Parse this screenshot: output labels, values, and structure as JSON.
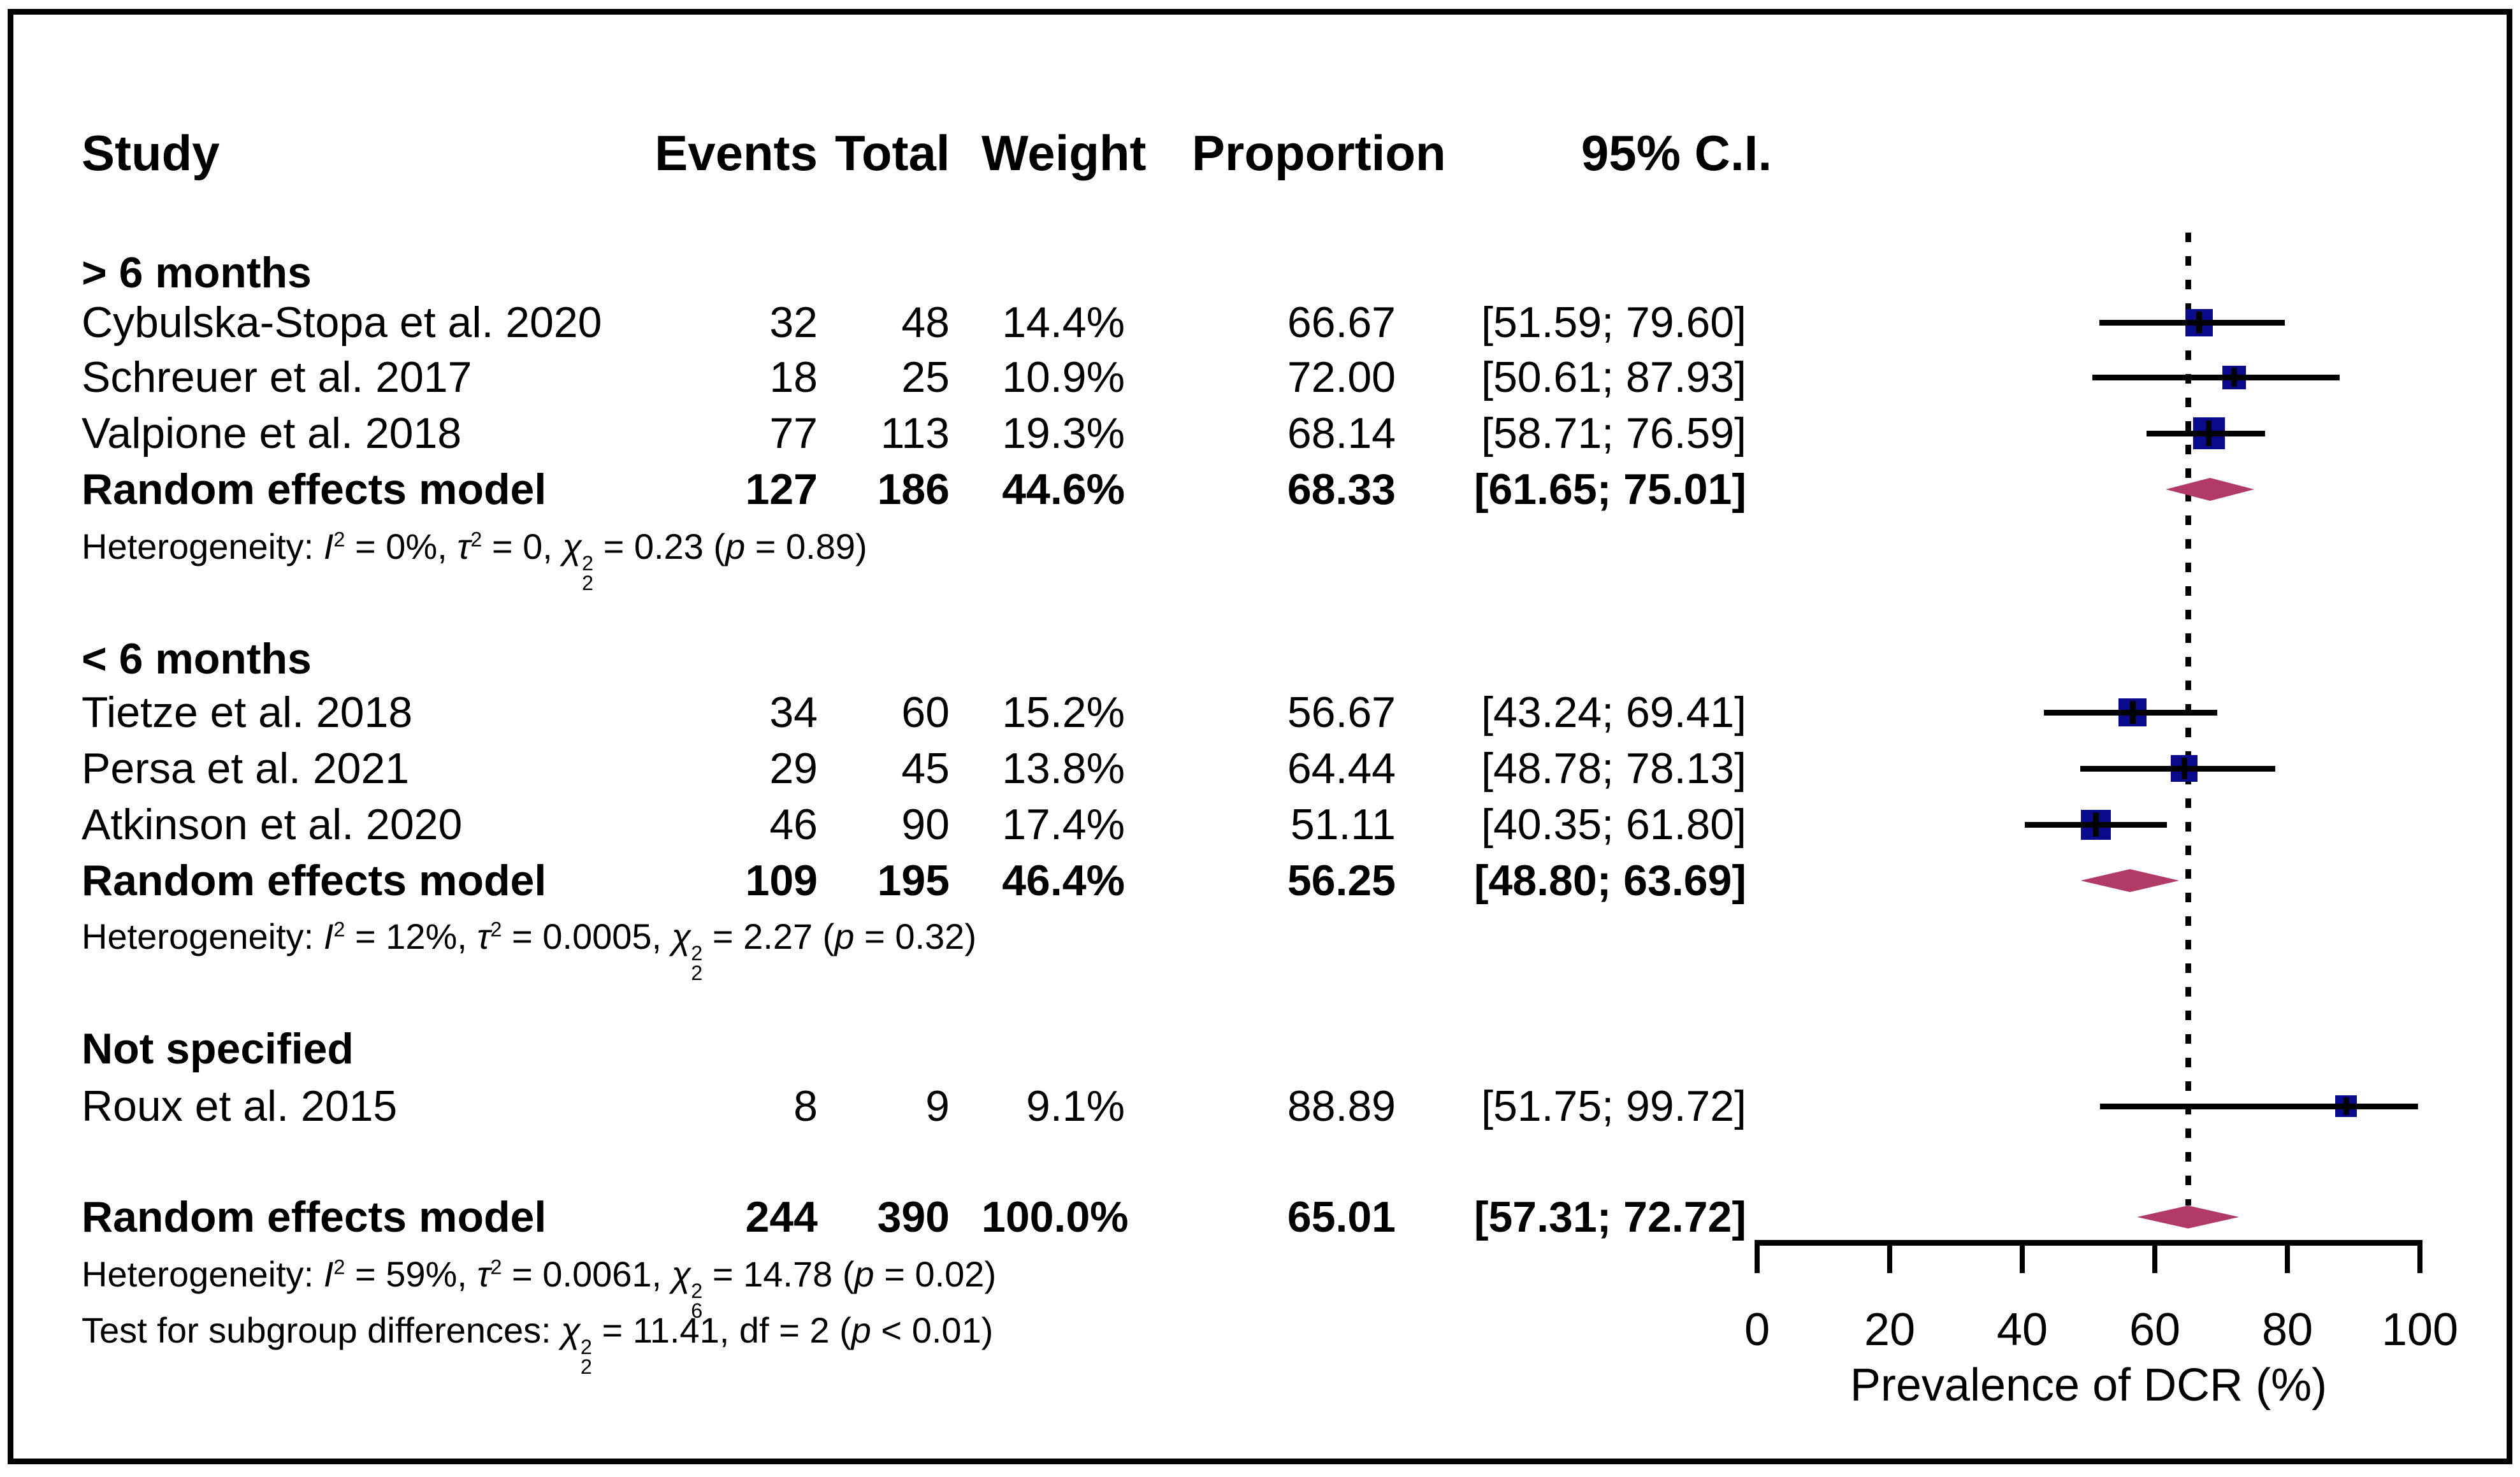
{
  "table": {
    "header": {
      "study": "Study",
      "events": "Events",
      "total": "Total",
      "weight": "Weight",
      "proportion": "Proportion",
      "ci": "95% C.I."
    },
    "groups": [
      {
        "label": "> 6 months",
        "studies": [
          {
            "name": "Cybulska-Stopa et al. 2020",
            "events": "32",
            "total": "48",
            "weight": "14.4%",
            "proportion": "66.67",
            "ci": "[51.59; 79.60]"
          },
          {
            "name": "Schreuer et al. 2017",
            "events": "18",
            "total": "25",
            "weight": "10.9%",
            "proportion": "72.00",
            "ci": "[50.61; 87.93]"
          },
          {
            "name": "Valpione et al. 2018",
            "events": "77",
            "total": "113",
            "weight": "19.3%",
            "proportion": "68.14",
            "ci": "[58.71; 76.59]"
          }
        ],
        "pooled": {
          "name": "Random effects model",
          "events": "127",
          "total": "186",
          "weight": "44.6%",
          "proportion": "68.33",
          "ci": "[61.65; 75.01]"
        },
        "heterogeneity": [
          {
            "t": "Heterogeneity: "
          },
          {
            "t": "I",
            "i": true
          },
          {
            "t": "2",
            "sup": true
          },
          {
            "t": " = 0%, "
          },
          {
            "t": "τ",
            "i": true
          },
          {
            "t": "2",
            "sup": true
          },
          {
            "t": " = 0, "
          },
          {
            "t": "χ",
            "i": true
          },
          {
            "stack": {
              "sup": "2",
              "sub": "2"
            }
          },
          {
            "t": " = 0.23 ("
          },
          {
            "t": "p",
            "i": true
          },
          {
            "t": " = 0.89)"
          }
        ]
      },
      {
        "label": "< 6 months",
        "studies": [
          {
            "name": "Tietze et al. 2018",
            "events": "34",
            "total": "60",
            "weight": "15.2%",
            "proportion": "56.67",
            "ci": "[43.24; 69.41]"
          },
          {
            "name": "Persa et al. 2021",
            "events": "29",
            "total": "45",
            "weight": "13.8%",
            "proportion": "64.44",
            "ci": "[48.78; 78.13]"
          },
          {
            "name": "Atkinson et al. 2020",
            "events": "46",
            "total": "90",
            "weight": "17.4%",
            "proportion": "51.11",
            "ci": "[40.35; 61.80]"
          }
        ],
        "pooled": {
          "name": "Random effects model",
          "events": "109",
          "total": "195",
          "weight": "46.4%",
          "proportion": "56.25",
          "ci": "[48.80; 63.69]"
        },
        "heterogeneity": [
          {
            "t": "Heterogeneity: "
          },
          {
            "t": "I",
            "i": true
          },
          {
            "t": "2",
            "sup": true
          },
          {
            "t": " = 12%, "
          },
          {
            "t": "τ",
            "i": true
          },
          {
            "t": "2",
            "sup": true
          },
          {
            "t": " = 0.0005, "
          },
          {
            "t": "χ",
            "i": true
          },
          {
            "stack": {
              "sup": "2",
              "sub": "2"
            }
          },
          {
            "t": " = 2.27 ("
          },
          {
            "t": "p",
            "i": true
          },
          {
            "t": " = 0.32)"
          }
        ]
      },
      {
        "label": "Not specified",
        "studies": [
          {
            "name": "Roux et al. 2015",
            "events": "8",
            "total": "9",
            "weight": "9.1%",
            "proportion": "88.89",
            "ci": "[51.75; 99.72]"
          }
        ]
      }
    ],
    "overall": {
      "name": "Random effects model",
      "events": "244",
      "total": "390",
      "weight": "100.0%",
      "proportion": "65.01",
      "ci": "[57.31; 72.72]"
    },
    "overall_heterogeneity": [
      {
        "t": "Heterogeneity: "
      },
      {
        "t": "I",
        "i": true
      },
      {
        "t": "2",
        "sup": true
      },
      {
        "t": " = 59%, "
      },
      {
        "t": "τ",
        "i": true
      },
      {
        "t": "2",
        "sup": true
      },
      {
        "t": " = 0.0061, "
      },
      {
        "t": "χ",
        "i": true
      },
      {
        "stack": {
          "sup": "2",
          "sub": "6"
        }
      },
      {
        "t": " = 14.78 ("
      },
      {
        "t": "p",
        "i": true
      },
      {
        "t": " = 0.02)"
      }
    ],
    "subgroup_test": [
      {
        "t": "Test for subgroup differences: "
      },
      {
        "t": "χ",
        "i": true
      },
      {
        "stack": {
          "sup": "2",
          "sub": "2"
        }
      },
      {
        "t": " = 11.41, df = 2 ("
      },
      {
        "t": "p",
        "i": true
      },
      {
        "t": " < 0.01)"
      }
    ]
  },
  "chart_data": {
    "type": "scatter",
    "subtype": "forest-plot",
    "xlabel": "Prevalence of DCR (%)",
    "xlim": [
      0,
      100
    ],
    "x_ticks": [
      0,
      20,
      40,
      60,
      80,
      100
    ],
    "reference_line": 65.01,
    "groups": [
      {
        "label": "> 6 months",
        "studies": [
          {
            "name": "Cybulska-Stopa et al. 2020",
            "est": 66.67,
            "lo": 51.59,
            "hi": 79.6,
            "weight": 14.4
          },
          {
            "name": "Schreuer et al. 2017",
            "est": 72.0,
            "lo": 50.61,
            "hi": 87.93,
            "weight": 10.9
          },
          {
            "name": "Valpione et al. 2018",
            "est": 68.14,
            "lo": 58.71,
            "hi": 76.59,
            "weight": 19.3
          }
        ],
        "pooled": {
          "est": 68.33,
          "lo": 61.65,
          "hi": 75.01,
          "weight": 44.6
        }
      },
      {
        "label": "< 6 months",
        "studies": [
          {
            "name": "Tietze et al. 2018",
            "est": 56.67,
            "lo": 43.24,
            "hi": 69.41,
            "weight": 15.2
          },
          {
            "name": "Persa et al. 2021",
            "est": 64.44,
            "lo": 48.78,
            "hi": 78.13,
            "weight": 13.8
          },
          {
            "name": "Atkinson et al. 2020",
            "est": 51.11,
            "lo": 40.35,
            "hi": 61.8,
            "weight": 17.4
          }
        ],
        "pooled": {
          "est": 56.25,
          "lo": 48.8,
          "hi": 63.69,
          "weight": 46.4
        }
      },
      {
        "label": "Not specified",
        "studies": [
          {
            "name": "Roux et al. 2015",
            "est": 88.89,
            "lo": 51.75,
            "hi": 99.72,
            "weight": 9.1
          }
        ]
      }
    ],
    "overall": {
      "est": 65.01,
      "lo": 57.31,
      "hi": 72.72,
      "weight": 100.0
    }
  },
  "colors": {
    "square": "#0a0a8c",
    "diamond": "#b23a66",
    "line": "#000000"
  }
}
